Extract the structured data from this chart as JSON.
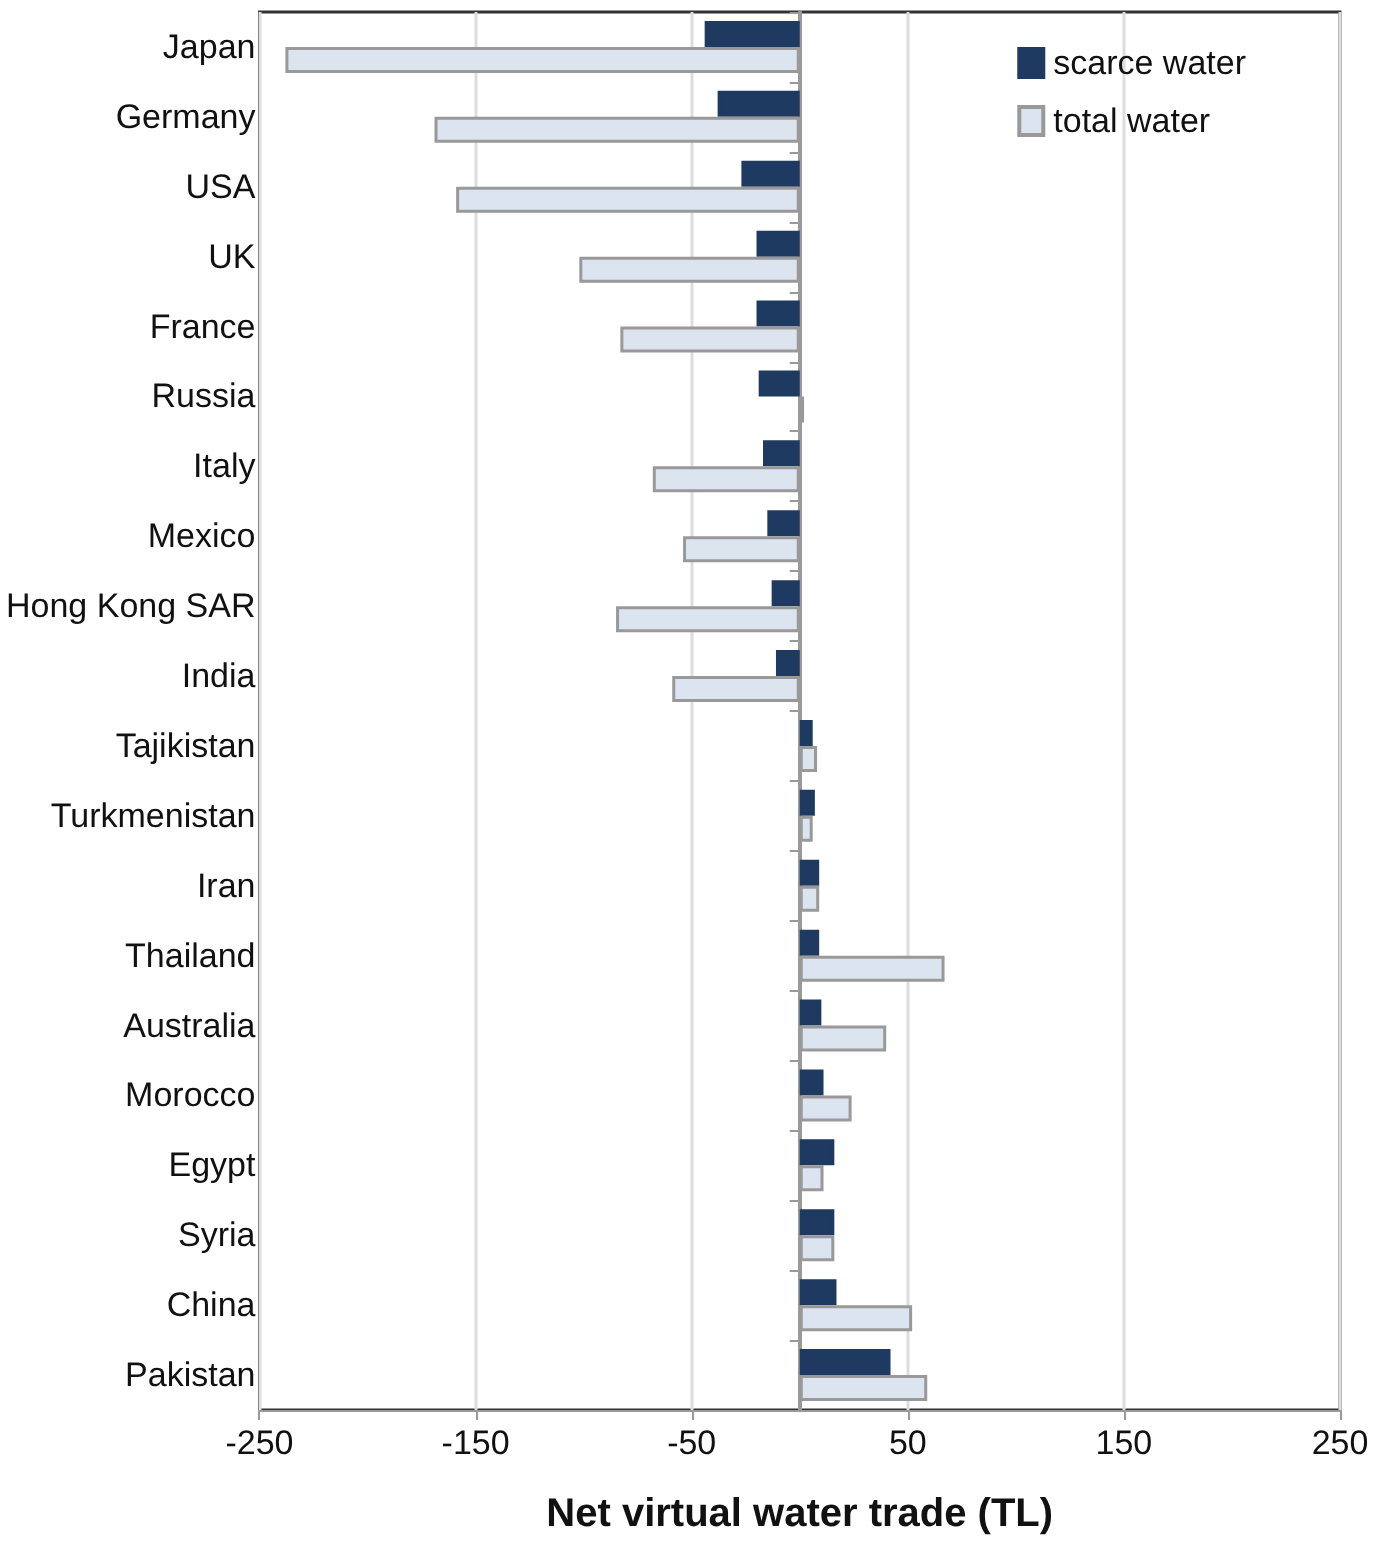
{
  "chart_data": {
    "type": "bar",
    "orientation": "horizontal",
    "xlabel": "Net virtual water trade (TL)",
    "categories": [
      "Japan",
      "Germany",
      "USA",
      "UK",
      "France",
      "Russia",
      "Italy",
      "Mexico",
      "Hong Kong SAR",
      "India",
      "Tajikistan",
      "Turkmenistan",
      "Iran",
      "Thailand",
      "Australia",
      "Morocco",
      "Egypt",
      "Syria",
      "China",
      "Pakistan"
    ],
    "series": [
      {
        "name": "scarce water",
        "color": "#1f3a60",
        "values": [
          -44,
          -38,
          -27,
          -20,
          -20,
          -19,
          -17,
          -15,
          -13,
          -11,
          6,
          7,
          9,
          9,
          10,
          11,
          16,
          16,
          17,
          42
        ]
      },
      {
        "name": "total water",
        "color": "#dce4ef",
        "values": [
          -238,
          -169,
          -159,
          -102,
          -83,
          2,
          -68,
          -54,
          -85,
          -59,
          8,
          6,
          9,
          67,
          40,
          24,
          11,
          16,
          52,
          59
        ]
      }
    ],
    "xlim": [
      -250,
      250
    ],
    "xticks": [
      -250,
      -150,
      -50,
      50,
      150,
      250
    ],
    "grid": "x",
    "legend": "top right"
  }
}
